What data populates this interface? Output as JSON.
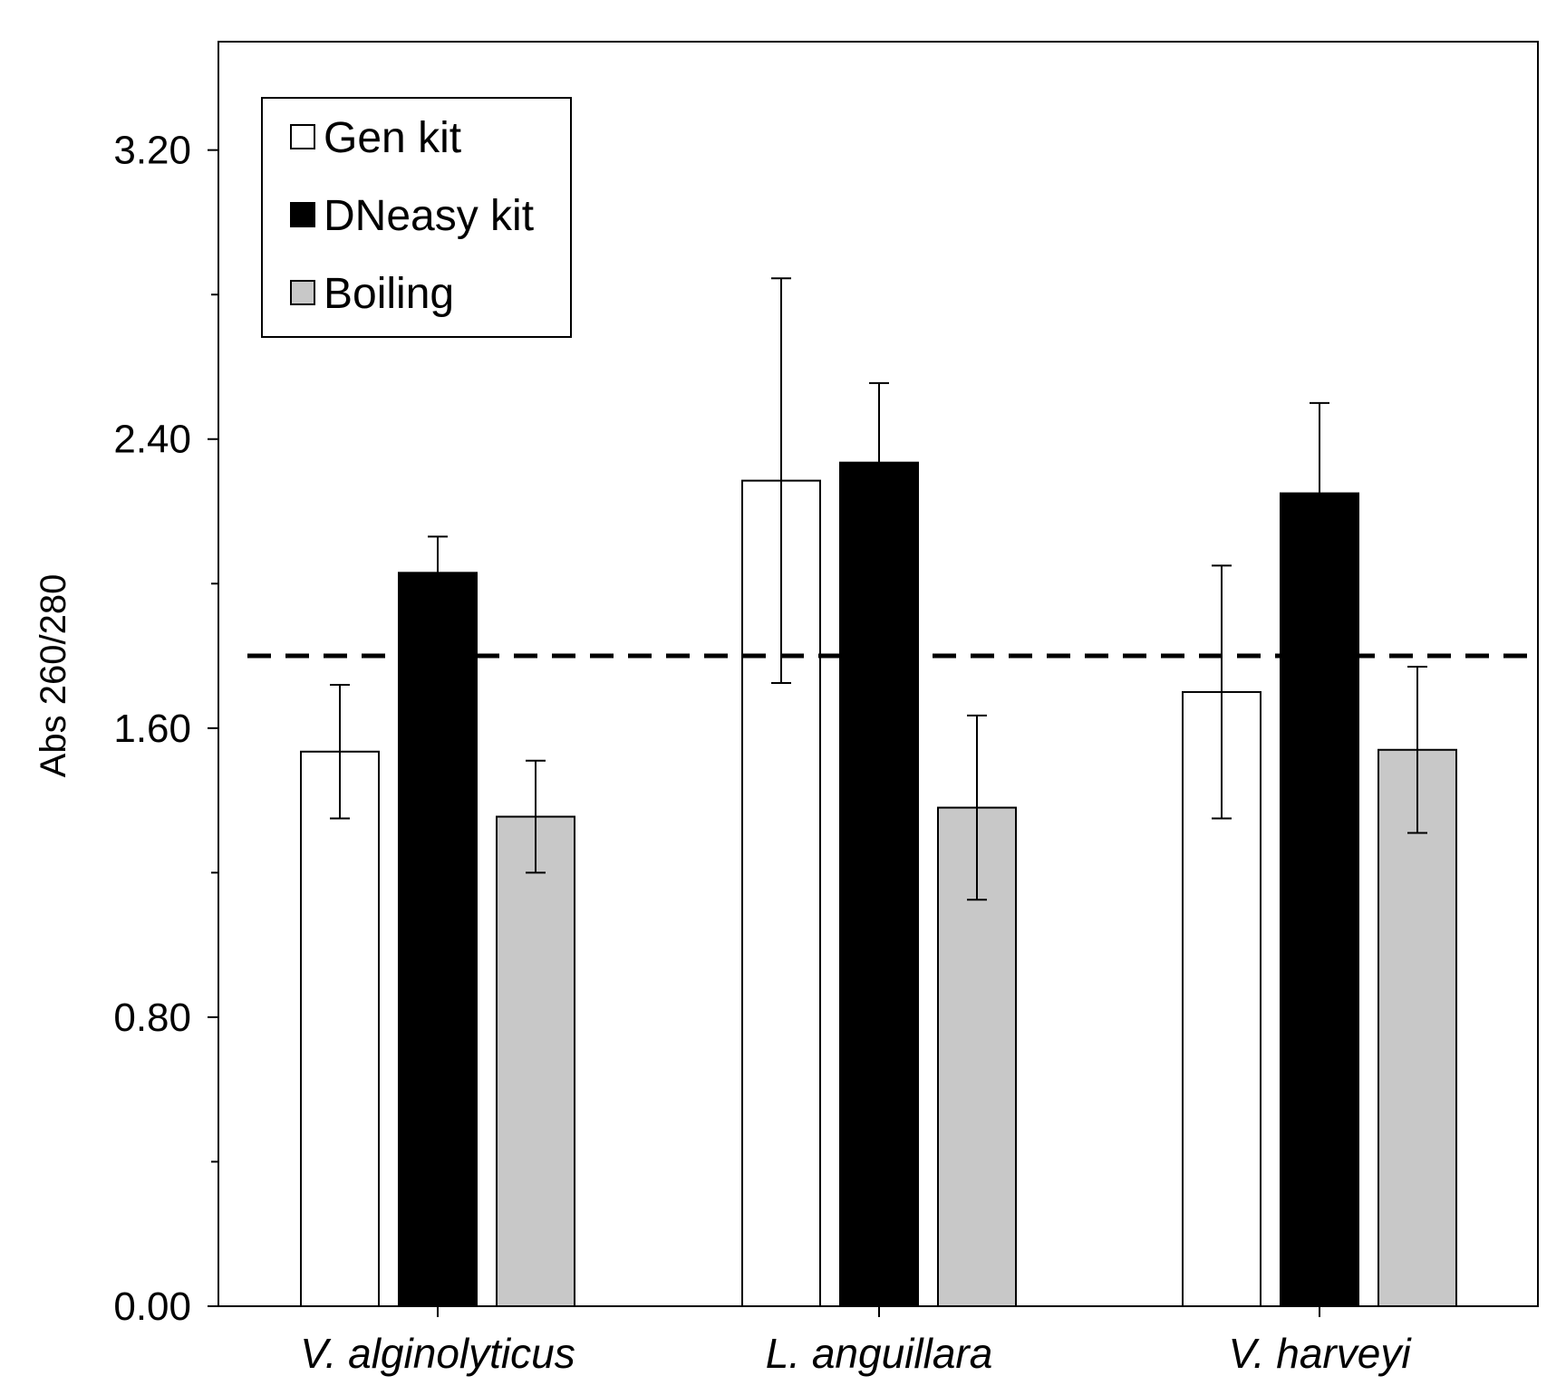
{
  "chart_data": {
    "type": "bar",
    "title": "",
    "xlabel": "",
    "ylabel": "Abs 260/280",
    "ylim": [
      0,
      3.5
    ],
    "yticks": [
      0.0,
      0.8,
      1.6,
      2.4,
      3.2
    ],
    "ytick_labels": [
      "0.00",
      "0.80",
      "1.60",
      "2.40",
      "3.20"
    ],
    "yminor_ticks": [
      0.4,
      1.2,
      2.0,
      2.8
    ],
    "categories": [
      "V. alginolyticus",
      "L. anguillara",
      "V. harveyi"
    ],
    "series": [
      {
        "name": "Gen kit",
        "color": "#ffffff",
        "values": [
          1.535,
          2.285,
          1.7
        ],
        "errors": [
          0.185,
          0.56,
          0.35
        ]
      },
      {
        "name": "DNeasy kit",
        "color": "#000000",
        "values": [
          2.03,
          2.335,
          2.25
        ],
        "errors": [
          0.1,
          0.22,
          0.25
        ]
      },
      {
        "name": "Boiling",
        "color": "#c8c8c8",
        "values": [
          1.355,
          1.38,
          1.54
        ],
        "errors": [
          0.155,
          0.255,
          0.23
        ]
      }
    ],
    "reference_line": {
      "value": 1.8,
      "style": "dashed"
    },
    "legend_position": "top-left",
    "grid": false
  }
}
